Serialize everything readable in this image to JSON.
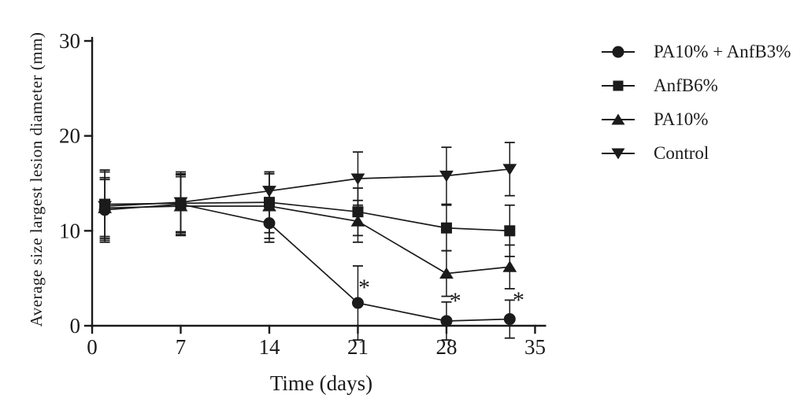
{
  "figure": {
    "background": "#ffffff",
    "ink_color": "#1b1b1b"
  },
  "chart_data": {
    "type": "line",
    "title": "",
    "xlabel": "Time (days)",
    "ylabel": "Average size largest lesion diameter (mm)",
    "x_ticks": [
      0,
      7,
      14,
      21,
      28,
      35
    ],
    "y_ticks": [
      0,
      10,
      20,
      30
    ],
    "xlim": [
      0,
      35.8
    ],
    "ylim": [
      0,
      30
    ],
    "grid": false,
    "legend_position": "right-top",
    "x": [
      1,
      7,
      14,
      21,
      28,
      33
    ],
    "series": [
      {
        "name": "Control",
        "marker": "triangle-down",
        "values": [
          12.6,
          13.0,
          14.2,
          15.5,
          15.8,
          16.5
        ],
        "errors": [
          3.8,
          3.2,
          2.0,
          2.8,
          3.0,
          2.8
        ]
      },
      {
        "name": "PA10%",
        "marker": "triangle-up",
        "values": [
          12.4,
          12.6,
          12.6,
          11.0,
          5.5,
          6.2
        ],
        "errors": [
          3.2,
          3.1,
          3.4,
          2.2,
          2.4,
          2.3
        ]
      },
      {
        "name": "AnfB6%",
        "marker": "square",
        "values": [
          12.8,
          12.9,
          13.0,
          12.0,
          10.3,
          10.0
        ],
        "errors": [
          3.4,
          3.0,
          3.2,
          2.5,
          2.4,
          2.7
        ]
      },
      {
        "name": "PA10% + AnfB3%",
        "marker": "circle",
        "values": [
          12.2,
          12.8,
          10.8,
          2.4,
          0.5,
          0.7
        ],
        "errors": [
          3.2,
          3.2,
          2.0,
          3.9,
          2.0,
          2.0
        ]
      }
    ],
    "annotations": [
      {
        "text": "*",
        "x": 21.5,
        "y": 4.3
      },
      {
        "text": "*",
        "x": 28.7,
        "y": 2.9
      },
      {
        "text": "*",
        "x": 33.7,
        "y": 3.0
      }
    ]
  },
  "legend": {
    "entries": [
      {
        "label": "PA10% + AnfB3%",
        "marker": "circle"
      },
      {
        "label": "AnfB6%",
        "marker": "square"
      },
      {
        "label": "PA10%",
        "marker": "triangle-up"
      },
      {
        "label": "Control",
        "marker": "triangle-down"
      }
    ]
  }
}
